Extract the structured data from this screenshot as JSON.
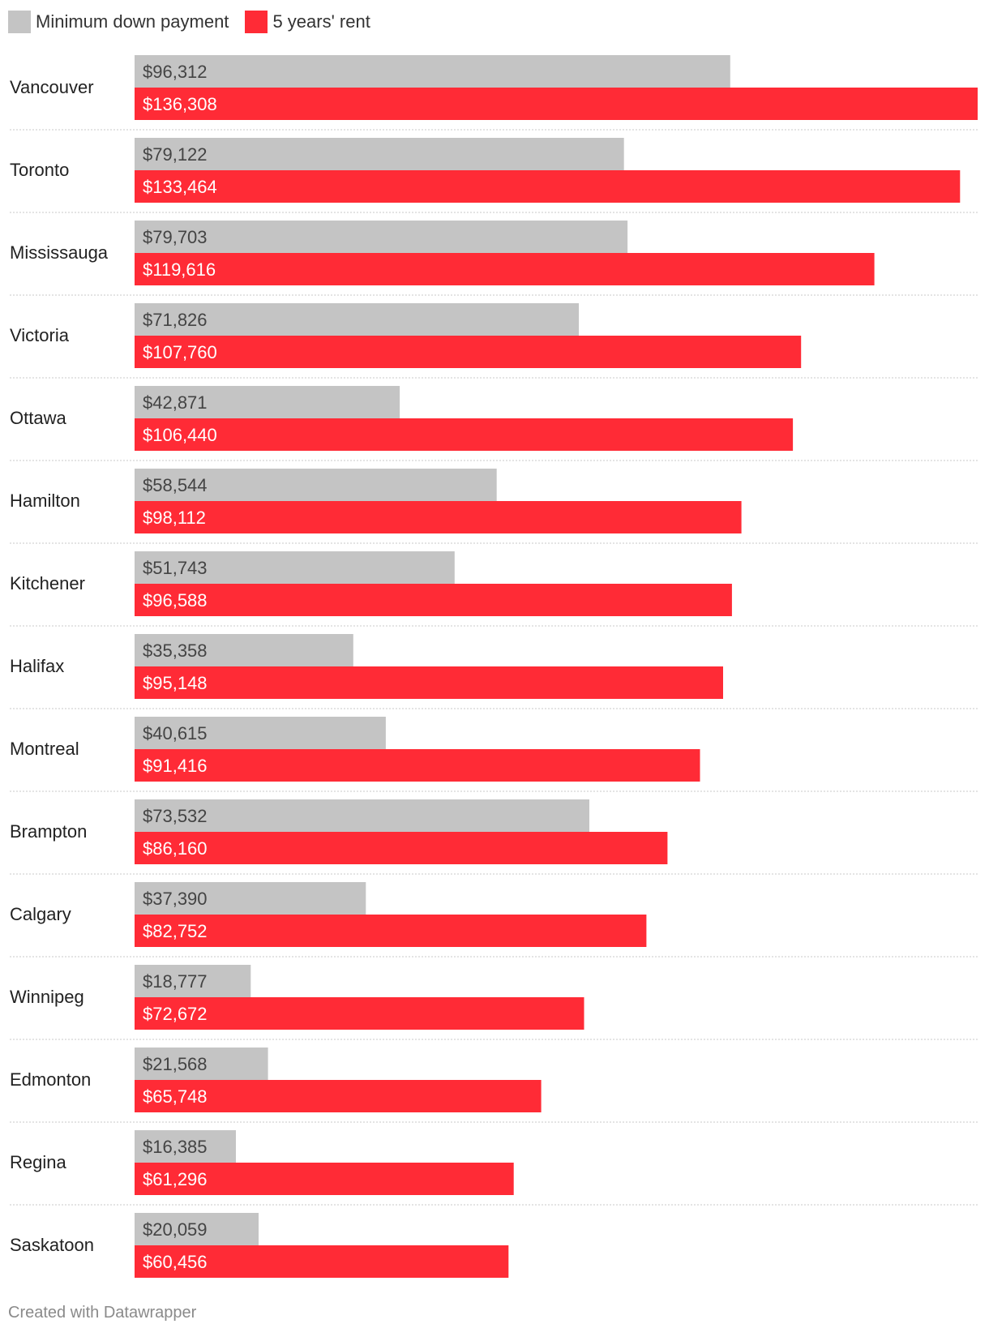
{
  "legend": [
    {
      "label": "Minimum down payment",
      "color": "#c4c4c4"
    },
    {
      "label": "5 years' rent",
      "color": "#ff2b36"
    }
  ],
  "footer": "Created with Datawrapper",
  "chart_data": {
    "type": "bar",
    "orientation": "horizontal",
    "grouped": true,
    "value_prefix": "$",
    "legend_position": "top-left",
    "grid": false,
    "categories": [
      "Vancouver",
      "Toronto",
      "Mississauga",
      "Victoria",
      "Ottawa",
      "Hamilton",
      "Kitchener",
      "Halifax",
      "Montreal",
      "Brampton",
      "Calgary",
      "Winnipeg",
      "Edmonton",
      "Regina",
      "Saskatoon"
    ],
    "series": [
      {
        "name": "Minimum down payment",
        "color": "#c4c4c4",
        "label_color": "#444444",
        "values": [
          96312,
          79122,
          79703,
          71826,
          42871,
          58544,
          51743,
          35358,
          40615,
          73532,
          37390,
          18777,
          21568,
          16385,
          20059
        ],
        "labels": [
          "$96,312",
          "$79,122",
          "$79,703",
          "$71,826",
          "$42,871",
          "$58,544",
          "$51,743",
          "$35,358",
          "$40,615",
          "$73,532",
          "$37,390",
          "$18,777",
          "$21,568",
          "$16,385",
          "$20,059"
        ]
      },
      {
        "name": "5 years' rent",
        "color": "#ff2b36",
        "label_color": "#ffffff",
        "values": [
          136308,
          133464,
          119616,
          107760,
          106440,
          98112,
          96588,
          95148,
          91416,
          86160,
          82752,
          72672,
          65748,
          61296,
          60456
        ],
        "labels": [
          "$136,308",
          "$133,464",
          "$119,616",
          "$107,760",
          "$106,440",
          "$98,112",
          "$96,588",
          "$95,148",
          "$91,416",
          "$86,160",
          "$82,752",
          "$72,672",
          "$65,748",
          "$61,296",
          "$60,456"
        ]
      }
    ],
    "xlim": [
      0,
      136308
    ]
  }
}
